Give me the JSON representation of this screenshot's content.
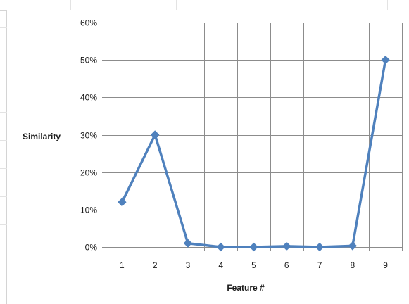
{
  "chart_data": {
    "type": "line",
    "title": "",
    "xlabel": "Feature #",
    "ylabel": "Similarity",
    "x": [
      1,
      2,
      3,
      4,
      5,
      6,
      7,
      8,
      9
    ],
    "x_tick_labels": [
      "1",
      "2",
      "3",
      "4",
      "5",
      "6",
      "7",
      "8",
      "9"
    ],
    "ylim": [
      0,
      60
    ],
    "y_ticks": [
      0,
      10,
      20,
      30,
      40,
      50,
      60
    ],
    "y_tick_labels": [
      "0%",
      "10%",
      "20%",
      "30%",
      "40%",
      "50%",
      "60%"
    ],
    "y_unit": "%",
    "grid": true,
    "legend": "none",
    "marker": "diamond",
    "series": [
      {
        "values": [
          12,
          30,
          1,
          0,
          0,
          0.2,
          0,
          0.3,
          50
        ],
        "color": "#4f81bd"
      }
    ]
  }
}
